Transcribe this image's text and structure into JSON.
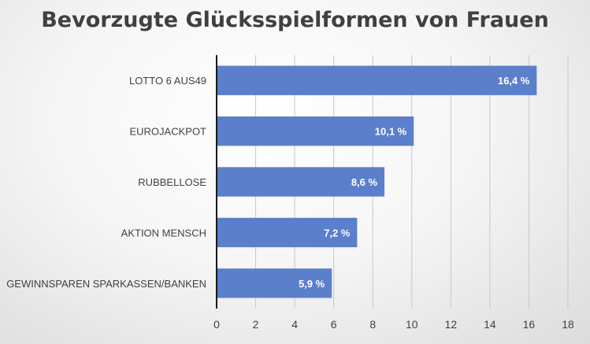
{
  "chart_data": {
    "type": "bar",
    "orientation": "horizontal",
    "title": "Bevorzugte Glücksspielformen von Frauen",
    "categories": [
      "LOTTO 6 AUS49",
      "EUROJACKPOT",
      "RUBBELLOSE",
      "AKTION MENSCH",
      "GEWINNSPAREN SPARKASSEN/BANKEN"
    ],
    "values": [
      16.4,
      10.1,
      8.6,
      7.2,
      5.9
    ],
    "data_labels": [
      "16,4 %",
      "10,1 %",
      "8,6 %",
      "7,2 %",
      "5,9 %"
    ],
    "xlim": [
      0,
      18
    ],
    "xticks": [
      0,
      2,
      4,
      6,
      8,
      10,
      12,
      14,
      16,
      18
    ],
    "xtick_labels": [
      "0",
      "2",
      "4",
      "6",
      "8",
      "10",
      "12",
      "14",
      "16",
      "18"
    ],
    "grid": "vertical",
    "legend": "none",
    "bar_color": "#5b7fcb",
    "label_color": "#ffffff"
  }
}
